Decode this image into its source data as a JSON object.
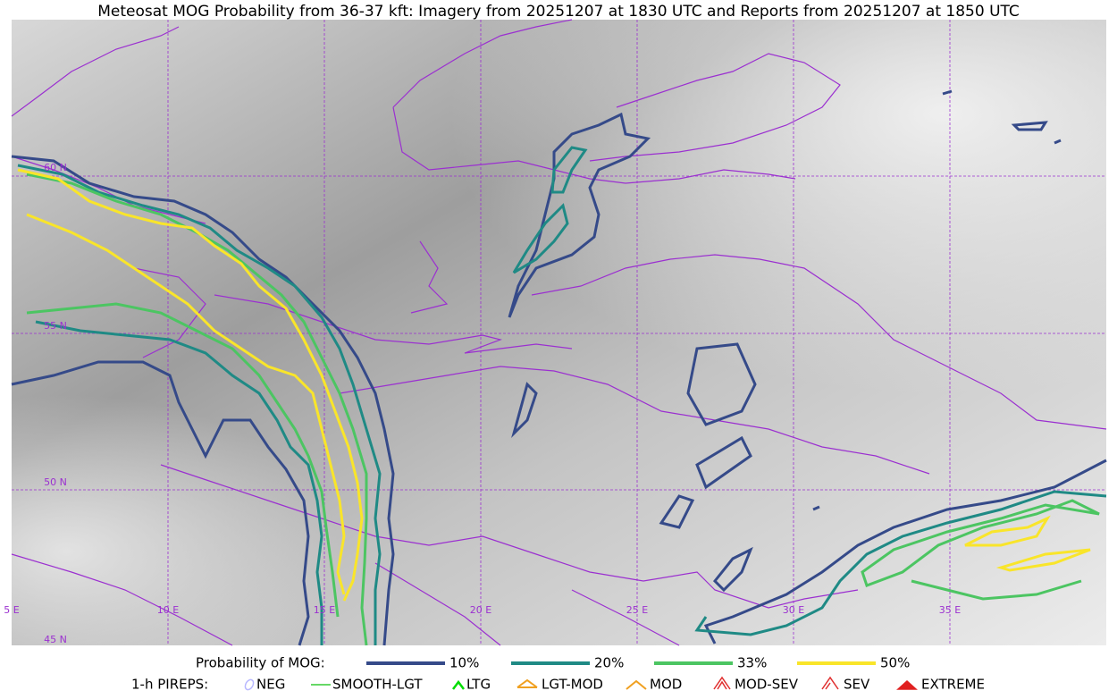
{
  "header": {
    "title": "Meteosat MOG Probability from 36-37 kft: Imagery from 20251207 at 1830 UTC and Reports from 20251207 at 1850 UTC"
  },
  "map": {
    "lat_labels": [
      "60 N",
      "55 N",
      "50 N",
      "45 N"
    ],
    "lon_labels": [
      "5 E",
      "10 E",
      "15 E",
      "20 E",
      "25 E",
      "30 E",
      "35 E"
    ]
  },
  "legend": {
    "probability": {
      "label": "Probability of MOG:",
      "items": [
        {
          "label": "10%",
          "color": "#354a89"
        },
        {
          "label": "20%",
          "color": "#1f8a85"
        },
        {
          "label": "33%",
          "color": "#4cc562"
        },
        {
          "label": "50%",
          "color": "#f9e52a"
        }
      ]
    },
    "pireps": {
      "label": "1-h PIREPS:",
      "items": [
        "NEG",
        "SMOOTH-LGT",
        "LTG",
        "LGT-MOD",
        "MOD",
        "MOD-SEV",
        "SEV",
        "EXTREME"
      ]
    }
  }
}
